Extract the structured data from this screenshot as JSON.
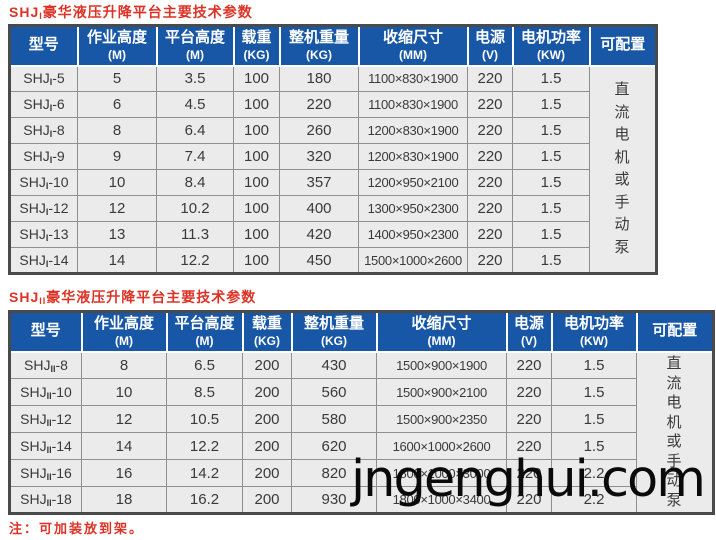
{
  "colors": {
    "header_bg": "#1757a6",
    "title_red": "#dd3327",
    "row_bg": "#ebebeb"
  },
  "watermark": "jngenghui.com",
  "note": "注：可加装放到架。",
  "columns": [
    {
      "title": "型号",
      "unit": ""
    },
    {
      "title": "作业高度",
      "unit": "(M)"
    },
    {
      "title": "平台高度",
      "unit": "(M)"
    },
    {
      "title": "载重",
      "unit": "(KG)"
    },
    {
      "title": "整机重量",
      "unit": "(KG)"
    },
    {
      "title": "收缩尺寸",
      "unit": "(MM)"
    },
    {
      "title": "电源",
      "unit": "(V)"
    },
    {
      "title": "电机功率",
      "unit": "(KW)"
    },
    {
      "title": "可配置",
      "unit": ""
    }
  ],
  "table1": {
    "title": {
      "prefix": "SHJ",
      "sub": "I",
      "text": "豪华液压升降平台主要技术参数"
    },
    "model_base": "SHJ",
    "model_sub": "I",
    "configurable": "直流电机或手动泵",
    "rows": [
      {
        "model": "-5",
        "work_height": "5",
        "platform_height": "3.5",
        "load": "100",
        "weight": "180",
        "size": "1100×830×1900",
        "power": "220",
        "motor": "1.5"
      },
      {
        "model": "-6",
        "work_height": "6",
        "platform_height": "4.5",
        "load": "100",
        "weight": "220",
        "size": "1100×830×1900",
        "power": "220",
        "motor": "1.5"
      },
      {
        "model": "-8",
        "work_height": "8",
        "platform_height": "6.4",
        "load": "100",
        "weight": "260",
        "size": "1200×830×1900",
        "power": "220",
        "motor": "1.5"
      },
      {
        "model": "-9",
        "work_height": "9",
        "platform_height": "7.4",
        "load": "100",
        "weight": "320",
        "size": "1200×830×1900",
        "power": "220",
        "motor": "1.5"
      },
      {
        "model": "-10",
        "work_height": "10",
        "platform_height": "8.4",
        "load": "100",
        "weight": "357",
        "size": "1200×950×2100",
        "power": "220",
        "motor": "1.5"
      },
      {
        "model": "-12",
        "work_height": "12",
        "platform_height": "10.2",
        "load": "100",
        "weight": "400",
        "size": "1300×950×2300",
        "power": "220",
        "motor": "1.5"
      },
      {
        "model": "-13",
        "work_height": "13",
        "platform_height": "11.3",
        "load": "100",
        "weight": "420",
        "size": "1400×950×2300",
        "power": "220",
        "motor": "1.5"
      },
      {
        "model": "-14",
        "work_height": "14",
        "platform_height": "12.2",
        "load": "100",
        "weight": "450",
        "size": "1500×1000×2600",
        "power": "220",
        "motor": "1.5"
      }
    ]
  },
  "table2": {
    "title": {
      "prefix": "SHJ",
      "sub": "II",
      "text": "豪华液压升降平台主要技术参数"
    },
    "model_base": "SHJ",
    "model_sub": "II",
    "configurable": "直流电机或手动泵",
    "rows": [
      {
        "model": "-8",
        "work_height": "8",
        "platform_height": "6.5",
        "load": "200",
        "weight": "430",
        "size": "1500×900×1900",
        "power": "220",
        "motor": "1.5"
      },
      {
        "model": "-10",
        "work_height": "10",
        "platform_height": "8.5",
        "load": "200",
        "weight": "560",
        "size": "1500×900×2100",
        "power": "220",
        "motor": "1.5"
      },
      {
        "model": "-12",
        "work_height": "12",
        "platform_height": "10.5",
        "load": "200",
        "weight": "580",
        "size": "1500×900×2350",
        "power": "220",
        "motor": "1.5"
      },
      {
        "model": "-14",
        "work_height": "14",
        "platform_height": "12.2",
        "load": "200",
        "weight": "620",
        "size": "1600×1000×2600",
        "power": "220",
        "motor": "1.5"
      },
      {
        "model": "-16",
        "work_height": "16",
        "platform_height": "14.2",
        "load": "200",
        "weight": "820",
        "size": "1800×1000×3000",
        "power": "220",
        "motor": "2.2"
      },
      {
        "model": "-18",
        "work_height": "18",
        "platform_height": "16.2",
        "load": "200",
        "weight": "930",
        "size": "1800×1000×3400",
        "power": "220",
        "motor": "2.2"
      }
    ]
  }
}
